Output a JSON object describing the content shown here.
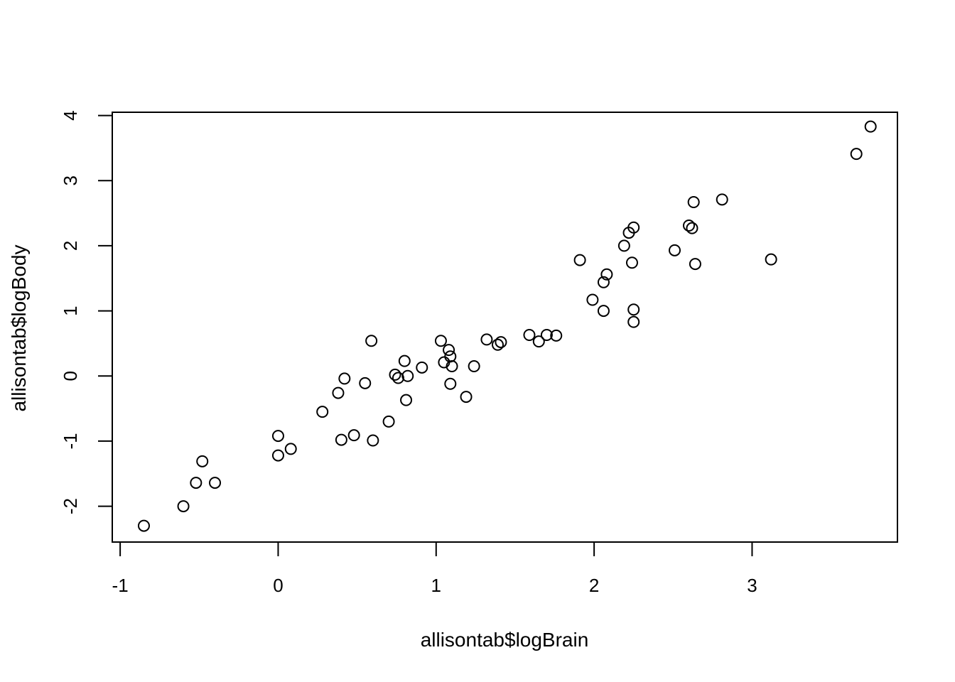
{
  "chart_data": {
    "type": "scatter",
    "title": "",
    "xlabel": "allisontab$logBrain",
    "ylabel": "allisontab$logBody",
    "xlim": [
      -1.05,
      3.92
    ],
    "ylim": [
      -2.55,
      4.05
    ],
    "x_ticks": [
      -1,
      0,
      1,
      2,
      3
    ],
    "y_ticks": [
      -2,
      -1,
      0,
      1,
      2,
      3,
      4
    ],
    "x_tick_labels": [
      "-1",
      "0",
      "1",
      "2",
      "3"
    ],
    "y_tick_labels": [
      "-2",
      "-1",
      "0",
      "1",
      "2",
      "3",
      "4"
    ],
    "grid": false,
    "marker": "open-circle",
    "points": [
      {
        "x": -0.85,
        "y": -2.3
      },
      {
        "x": -0.6,
        "y": -2.0
      },
      {
        "x": -0.52,
        "y": -1.64
      },
      {
        "x": -0.48,
        "y": -1.31
      },
      {
        "x": -0.4,
        "y": -1.64
      },
      {
        "x": 0.0,
        "y": -0.92
      },
      {
        "x": 0.0,
        "y": -1.22
      },
      {
        "x": 0.08,
        "y": -1.12
      },
      {
        "x": 0.28,
        "y": -0.55
      },
      {
        "x": 0.38,
        "y": -0.26
      },
      {
        "x": 0.4,
        "y": -0.98
      },
      {
        "x": 0.42,
        "y": -0.04
      },
      {
        "x": 0.48,
        "y": -0.91
      },
      {
        "x": 0.55,
        "y": -0.11
      },
      {
        "x": 0.59,
        "y": 0.54
      },
      {
        "x": 0.6,
        "y": -0.99
      },
      {
        "x": 0.7,
        "y": -0.7
      },
      {
        "x": 0.74,
        "y": 0.02
      },
      {
        "x": 0.76,
        "y": -0.03
      },
      {
        "x": 0.8,
        "y": 0.23
      },
      {
        "x": 0.81,
        "y": -0.37
      },
      {
        "x": 0.82,
        "y": 0.0
      },
      {
        "x": 0.91,
        "y": 0.13
      },
      {
        "x": 1.03,
        "y": 0.54
      },
      {
        "x": 1.05,
        "y": 0.21
      },
      {
        "x": 1.08,
        "y": 0.4
      },
      {
        "x": 1.09,
        "y": 0.3
      },
      {
        "x": 1.09,
        "y": -0.12
      },
      {
        "x": 1.1,
        "y": 0.15
      },
      {
        "x": 1.19,
        "y": -0.32
      },
      {
        "x": 1.24,
        "y": 0.15
      },
      {
        "x": 1.32,
        "y": 0.56
      },
      {
        "x": 1.39,
        "y": 0.48
      },
      {
        "x": 1.41,
        "y": 0.52
      },
      {
        "x": 1.59,
        "y": 0.63
      },
      {
        "x": 1.65,
        "y": 0.53
      },
      {
        "x": 1.7,
        "y": 0.63
      },
      {
        "x": 1.76,
        "y": 0.62
      },
      {
        "x": 1.91,
        "y": 1.78
      },
      {
        "x": 1.99,
        "y": 1.17
      },
      {
        "x": 2.06,
        "y": 1.0
      },
      {
        "x": 2.06,
        "y": 1.44
      },
      {
        "x": 2.08,
        "y": 1.56
      },
      {
        "x": 2.19,
        "y": 2.0
      },
      {
        "x": 2.22,
        "y": 2.2
      },
      {
        "x": 2.24,
        "y": 1.74
      },
      {
        "x": 2.25,
        "y": 2.28
      },
      {
        "x": 2.25,
        "y": 1.02
      },
      {
        "x": 2.25,
        "y": 0.83
      },
      {
        "x": 2.51,
        "y": 1.93
      },
      {
        "x": 2.6,
        "y": 2.31
      },
      {
        "x": 2.62,
        "y": 2.27
      },
      {
        "x": 2.63,
        "y": 2.67
      },
      {
        "x": 2.64,
        "y": 1.72
      },
      {
        "x": 2.81,
        "y": 2.71
      },
      {
        "x": 3.12,
        "y": 1.79
      },
      {
        "x": 3.66,
        "y": 3.41
      },
      {
        "x": 3.75,
        "y": 3.83
      }
    ]
  }
}
